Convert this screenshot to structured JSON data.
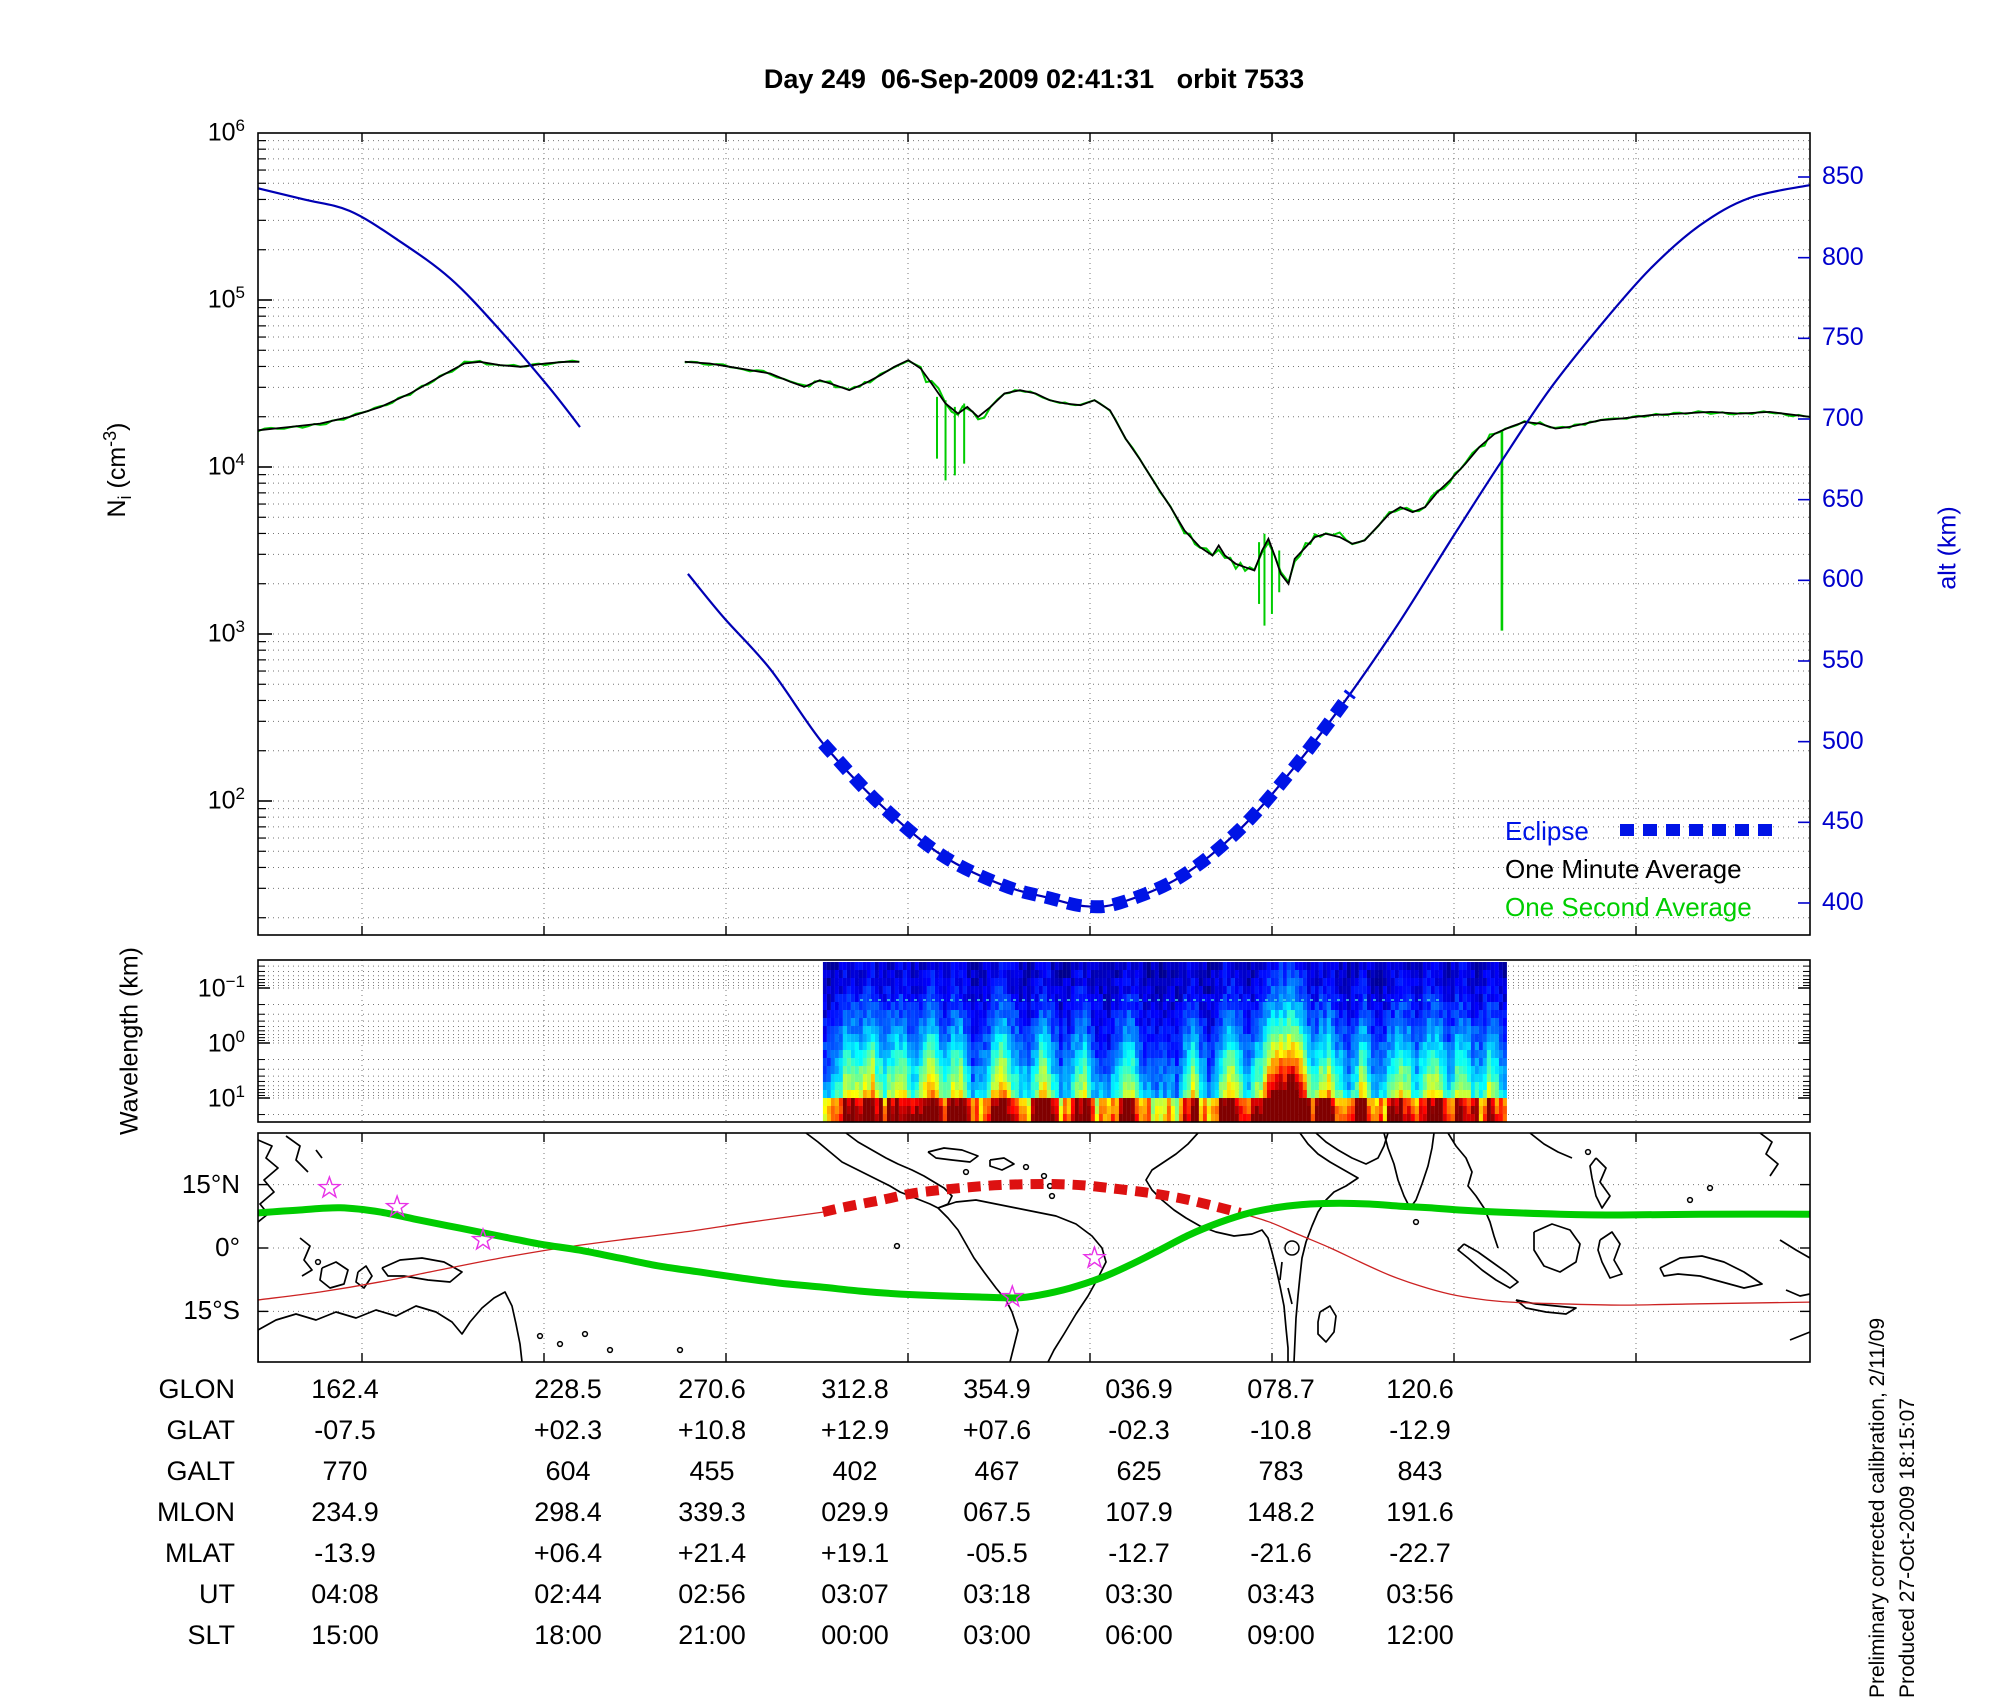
{
  "title": "Day 249  06-Sep-2009 02:41:31   orbit 7533",
  "notes": {
    "line1": "Preliminary corrected calibration, 2/11/09",
    "line2": "Produced 27-Oct-2009 18:15:07"
  },
  "colors": {
    "altitude": "#0000B4",
    "eclipse": "#0014E6",
    "minute": "#000000",
    "second": "#00CC00",
    "axis_right": "#0000CC",
    "map_green": "#00CC00",
    "map_red": "#CC2222",
    "map_red_dash": "#DD1111",
    "star": "#E832E8",
    "grid": "#777777"
  },
  "chart_data": [
    {
      "type": "line",
      "id": "density-altitude",
      "ylabel_left": {
        "base": "N",
        "sub": "i",
        "mid": " (cm",
        "sup": "-3",
        "end": ")"
      },
      "ylabel_right": "alt (km)",
      "y_left_tick_exponents": [
        6,
        5,
        4,
        3,
        2
      ],
      "y_right_ticks": [
        850,
        800,
        750,
        700,
        650,
        600,
        550,
        500,
        450,
        400
      ],
      "legend": [
        {
          "label": "Eclipse"
        },
        {
          "label": "One Minute Average"
        },
        {
          "label": "One Second Average"
        }
      ],
      "altitude_km": {
        "pre_gap": [
          [
            0,
            843
          ],
          [
            0.03,
            836
          ],
          [
            0.059,
            829
          ],
          [
            0.09,
            811
          ],
          [
            0.124,
            787
          ],
          [
            0.156,
            755
          ],
          [
            0.188,
            719
          ],
          [
            0.2075,
            695
          ]
        ],
        "post_gap": [
          [
            0.277,
            604
          ],
          [
            0.3,
            577
          ],
          [
            0.33,
            545
          ],
          [
            0.364,
            499
          ],
          [
            0.4,
            462
          ],
          [
            0.44,
            430
          ],
          [
            0.48,
            411
          ],
          [
            0.51,
            403
          ],
          [
            0.533,
            398
          ],
          [
            0.555,
            400
          ],
          [
            0.594,
            416
          ],
          [
            0.633,
            446
          ],
          [
            0.671,
            488
          ],
          [
            0.704,
            530
          ],
          [
            0.736,
            575
          ],
          [
            0.768,
            624
          ],
          [
            0.8,
            672
          ],
          [
            0.832,
            718
          ],
          [
            0.865,
            758
          ],
          [
            0.897,
            793
          ],
          [
            0.929,
            820
          ],
          [
            0.961,
            837
          ],
          [
            1,
            845
          ]
        ],
        "eclipse_span": [
          0.364,
          0.704
        ]
      },
      "density_log10": {
        "segment1": [
          [
            0,
            4.22
          ],
          [
            0.021,
            4.24
          ],
          [
            0.04,
            4.26
          ],
          [
            0.059,
            4.3
          ],
          [
            0.079,
            4.36
          ],
          [
            0.098,
            4.44
          ],
          [
            0.117,
            4.54
          ],
          [
            0.133,
            4.62
          ],
          [
            0.143,
            4.63
          ],
          [
            0.156,
            4.61
          ],
          [
            0.169,
            4.6
          ],
          [
            0.185,
            4.62
          ],
          [
            0.198,
            4.63
          ],
          [
            0.207,
            4.63
          ]
        ],
        "segment2": [
          [
            0.275,
            4.63
          ],
          [
            0.291,
            4.62
          ],
          [
            0.304,
            4.6
          ],
          [
            0.317,
            4.58
          ],
          [
            0.33,
            4.56
          ],
          [
            0.343,
            4.51
          ],
          [
            0.352,
            4.48
          ],
          [
            0.362,
            4.52
          ],
          [
            0.372,
            4.49
          ],
          [
            0.381,
            4.46
          ],
          [
            0.391,
            4.5
          ],
          [
            0.401,
            4.55
          ],
          [
            0.41,
            4.6
          ],
          [
            0.419,
            4.64
          ],
          [
            0.427,
            4.59
          ],
          [
            0.434,
            4.5
          ],
          [
            0.443,
            4.38
          ],
          [
            0.451,
            4.32
          ],
          [
            0.457,
            4.36
          ],
          [
            0.464,
            4.3
          ],
          [
            0.472,
            4.36
          ],
          [
            0.481,
            4.44
          ],
          [
            0.491,
            4.46
          ],
          [
            0.501,
            4.44
          ],
          [
            0.51,
            4.4
          ],
          [
            0.52,
            4.38
          ],
          [
            0.53,
            4.37
          ],
          [
            0.539,
            4.4
          ],
          [
            0.549,
            4.34
          ],
          [
            0.559,
            4.17
          ],
          [
            0.568,
            4.05
          ],
          [
            0.578,
            3.9
          ],
          [
            0.588,
            3.76
          ],
          [
            0.597,
            3.62
          ],
          [
            0.607,
            3.52
          ],
          [
            0.615,
            3.47
          ],
          [
            0.619,
            3.53
          ],
          [
            0.623,
            3.47
          ],
          [
            0.63,
            3.42
          ],
          [
            0.636,
            3.4
          ],
          [
            0.642,
            3.38
          ],
          [
            0.647,
            3.5
          ],
          [
            0.651,
            3.57
          ],
          [
            0.655,
            3.47
          ],
          [
            0.659,
            3.36
          ],
          [
            0.664,
            3.3
          ],
          [
            0.668,
            3.45
          ],
          [
            0.675,
            3.52
          ],
          [
            0.681,
            3.58
          ],
          [
            0.688,
            3.6
          ],
          [
            0.697,
            3.58
          ],
          [
            0.705,
            3.54
          ],
          [
            0.713,
            3.56
          ],
          [
            0.722,
            3.65
          ],
          [
            0.729,
            3.72
          ],
          [
            0.736,
            3.76
          ],
          [
            0.744,
            3.73
          ],
          [
            0.752,
            3.76
          ],
          [
            0.76,
            3.85
          ],
          [
            0.768,
            3.92
          ],
          [
            0.778,
            4.02
          ],
          [
            0.787,
            4.12
          ],
          [
            0.797,
            4.2
          ],
          [
            0.807,
            4.24
          ],
          [
            0.816,
            4.27
          ],
          [
            0.826,
            4.26
          ],
          [
            0.836,
            4.23
          ],
          [
            0.845,
            4.24
          ],
          [
            0.855,
            4.26
          ],
          [
            0.865,
            4.28
          ],
          [
            0.878,
            4.29
          ],
          [
            0.897,
            4.31
          ],
          [
            0.916,
            4.32
          ],
          [
            0.936,
            4.33
          ],
          [
            0.955,
            4.32
          ],
          [
            0.974,
            4.33
          ],
          [
            1,
            4.3
          ]
        ],
        "second_spikes": [
          [
            0.4375,
            4.42,
            4.05
          ],
          [
            0.443,
            4.4,
            3.92
          ],
          [
            0.449,
            4.36,
            3.95
          ],
          [
            0.455,
            4.38,
            4.02
          ],
          [
            0.645,
            3.55,
            3.18
          ],
          [
            0.6485,
            3.6,
            3.05
          ],
          [
            0.6533,
            3.52,
            3.12
          ],
          [
            0.658,
            3.5,
            3.25
          ],
          [
            0.8015,
            4.22,
            3.02
          ]
        ],
        "second_fuzz_zones": [
          [
            0,
            0.21,
            2.5
          ],
          [
            0.275,
            0.345,
            2
          ],
          [
            0.345,
            0.4,
            3
          ],
          [
            0.427,
            0.468,
            7
          ],
          [
            0.597,
            0.7,
            6
          ],
          [
            0.72,
            0.8,
            4
          ],
          [
            0.82,
            1,
            2
          ]
        ]
      }
    },
    {
      "type": "heatmap",
      "id": "wavelength-spectrogram",
      "ylabel": "Wavelength (km)",
      "y_tick_exponents": [
        -1,
        0,
        1
      ],
      "data_span": [
        0.364,
        0.8035
      ],
      "noise_seed": 7,
      "hotspots": [
        [
          0.38,
          0.008,
          0.55
        ],
        [
          0.394,
          0.006,
          0.6
        ],
        [
          0.412,
          0.01,
          0.5
        ],
        [
          0.433,
          0.008,
          0.7
        ],
        [
          0.45,
          0.006,
          0.6
        ],
        [
          0.478,
          0.01,
          0.65
        ],
        [
          0.505,
          0.008,
          0.55
        ],
        [
          0.53,
          0.006,
          0.5
        ],
        [
          0.56,
          0.008,
          0.45
        ],
        [
          0.6,
          0.006,
          0.5
        ],
        [
          0.625,
          0.008,
          0.6
        ],
        [
          0.655,
          0.012,
          1
        ],
        [
          0.668,
          0.008,
          0.85
        ],
        [
          0.688,
          0.008,
          0.6
        ],
        [
          0.71,
          0.006,
          0.5
        ],
        [
          0.735,
          0.008,
          0.55
        ],
        [
          0.755,
          0.008,
          0.6
        ],
        [
          0.775,
          0.008,
          0.5
        ],
        [
          0.793,
          0.006,
          0.45
        ]
      ]
    },
    {
      "type": "map",
      "id": "ground-track",
      "lat_labels": [
        "15°N",
        "0°",
        "15°S"
      ],
      "lat_ticks": [
        15,
        0,
        -15
      ],
      "green_track": [
        [
          0,
          8.3
        ],
        [
          0.027,
          9
        ],
        [
          0.053,
          9.5
        ],
        [
          0.079,
          8.5
        ],
        [
          0.104,
          6.6
        ],
        [
          0.13,
          4.7
        ],
        [
          0.156,
          2.8
        ],
        [
          0.182,
          0.9
        ],
        [
          0.207,
          -0.5
        ],
        [
          0.233,
          -2.4
        ],
        [
          0.259,
          -4.3
        ],
        [
          0.285,
          -5.7
        ],
        [
          0.311,
          -7.1
        ],
        [
          0.336,
          -8.3
        ],
        [
          0.362,
          -9.2
        ],
        [
          0.388,
          -10.2
        ],
        [
          0.414,
          -10.9
        ],
        [
          0.439,
          -11.3
        ],
        [
          0.465,
          -11.6
        ],
        [
          0.489,
          -11.8
        ],
        [
          0.504,
          -11.1
        ],
        [
          0.523,
          -9.5
        ],
        [
          0.543,
          -7.1
        ],
        [
          0.562,
          -4
        ],
        [
          0.581,
          -0.5
        ],
        [
          0.6,
          3.1
        ],
        [
          0.62,
          6.1
        ],
        [
          0.639,
          8.3
        ],
        [
          0.659,
          9.7
        ],
        [
          0.678,
          10.4
        ],
        [
          0.697,
          10.6
        ],
        [
          0.716,
          10.4
        ],
        [
          0.736,
          9.9
        ],
        [
          0.755,
          9.5
        ],
        [
          0.774,
          9
        ],
        [
          0.8,
          8.5
        ],
        [
          0.839,
          8
        ],
        [
          0.878,
          7.8
        ],
        [
          0.929,
          8
        ],
        [
          1,
          8
        ]
      ],
      "red_track_pre": [
        [
          0,
          -12.3
        ],
        [
          0.04,
          -10.4
        ],
        [
          0.079,
          -8
        ],
        [
          0.117,
          -5.2
        ],
        [
          0.156,
          -2.4
        ],
        [
          0.195,
          0
        ],
        [
          0.233,
          1.9
        ],
        [
          0.275,
          3.8
        ],
        [
          0.317,
          6.1
        ],
        [
          0.364,
          8.5
        ]
      ],
      "red_track_eclipse": [
        [
          0.364,
          8.5
        ],
        [
          0.381,
          9.9
        ],
        [
          0.401,
          11.3
        ],
        [
          0.42,
          12.8
        ],
        [
          0.439,
          13.7
        ],
        [
          0.459,
          14.4
        ],
        [
          0.478,
          14.9
        ],
        [
          0.497,
          15.1
        ],
        [
          0.517,
          15.1
        ],
        [
          0.536,
          14.7
        ],
        [
          0.555,
          13.9
        ],
        [
          0.575,
          13
        ],
        [
          0.594,
          11.8
        ],
        [
          0.613,
          10.2
        ],
        [
          0.633,
          8.3
        ]
      ],
      "red_track_post": [
        [
          0.633,
          8.3
        ],
        [
          0.652,
          6.1
        ],
        [
          0.671,
          3.1
        ],
        [
          0.691,
          0
        ],
        [
          0.71,
          -3.3
        ],
        [
          0.729,
          -6.4
        ],
        [
          0.749,
          -9
        ],
        [
          0.768,
          -10.9
        ],
        [
          0.787,
          -12.1
        ],
        [
          0.807,
          -12.8
        ],
        [
          0.839,
          -13.2
        ],
        [
          0.878,
          -13.5
        ],
        [
          0.929,
          -13.2
        ],
        [
          1,
          -12.8
        ]
      ],
      "stars": [
        [
          0.046,
          14.2
        ],
        [
          0.0896,
          9.7
        ],
        [
          0.145,
          1.9
        ],
        [
          0.486,
          -11.6
        ],
        [
          0.539,
          -2.4
        ]
      ]
    }
  ],
  "table": {
    "row_labels": [
      "GLON",
      "GLAT",
      "GALT",
      "MLON",
      "MLAT",
      "UT",
      "SLT"
    ],
    "rows": [
      [
        "162.4",
        "228.5",
        "270.6",
        "312.8",
        "354.9",
        "036.9",
        "078.7",
        "120.6"
      ],
      [
        "-07.5",
        "+02.3",
        "+10.8",
        "+12.9",
        "+07.6",
        "-02.3",
        "-10.8",
        "-12.9"
      ],
      [
        "770",
        "604",
        "455",
        "402",
        "467",
        "625",
        "783",
        "843"
      ],
      [
        "234.9",
        "298.4",
        "339.3",
        "029.9",
        "067.5",
        "107.9",
        "148.2",
        "191.6"
      ],
      [
        "-13.9",
        "+06.4",
        "+21.4",
        "+19.1",
        "-05.5",
        "-12.7",
        "-21.6",
        "-22.7"
      ],
      [
        "04:08",
        "02:44",
        "02:56",
        "03:07",
        "03:18",
        "03:30",
        "03:43",
        "03:56"
      ],
      [
        "15:00",
        "18:00",
        "21:00",
        "00:00",
        "03:00",
        "06:00",
        "09:00",
        "12:00"
      ]
    ]
  }
}
